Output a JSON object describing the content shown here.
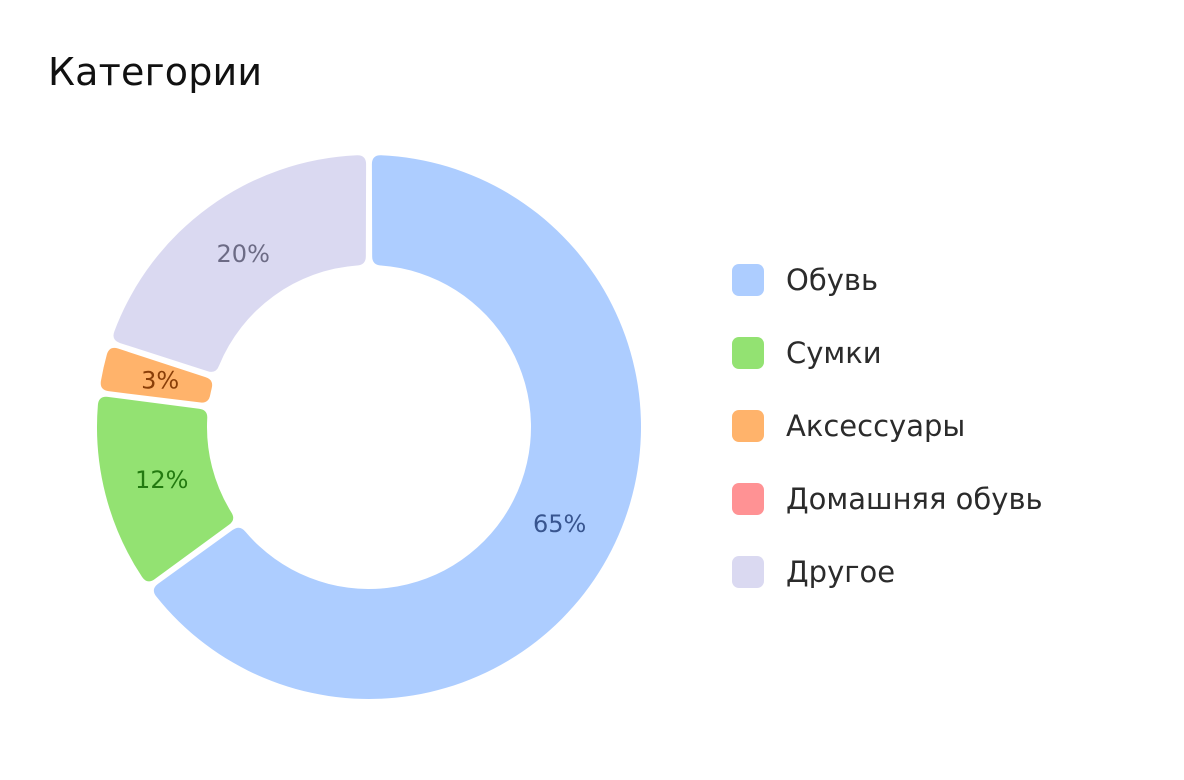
{
  "header": {
    "title": "Категории"
  },
  "chart_data": {
    "type": "pie",
    "variant": "donut",
    "categories": [
      "Обувь",
      "Сумки",
      "Аксессуары",
      "Домашняя обувь",
      "Другое"
    ],
    "values": [
      65,
      12,
      3,
      0,
      20
    ],
    "value_labels": [
      "65%",
      "12%",
      "3%",
      "",
      "20%"
    ],
    "colors": [
      "#adcdff",
      "#93e272",
      "#ffb36b",
      "#ff9294",
      "#dad9f1"
    ],
    "label_colors": [
      "#38558f",
      "#237a10",
      "#8a3e08",
      "#8a2a2c",
      "#6c6b85"
    ],
    "legend_position": "right"
  }
}
